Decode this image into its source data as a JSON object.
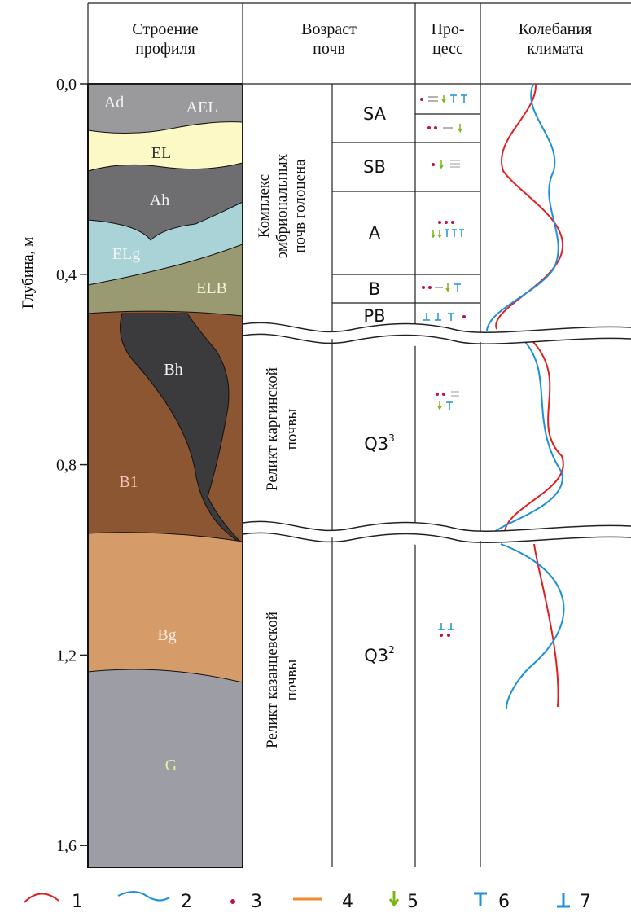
{
  "header": {
    "profile": [
      "Строение",
      "профиля"
    ],
    "age": [
      "Возраст",
      "почв"
    ],
    "process": [
      "Про-",
      "цесс"
    ],
    "climate": [
      "Колебания",
      "климата"
    ]
  },
  "depth_axis": {
    "title": "Глубина, м",
    "ticks": [
      {
        "value": 0,
        "label": "0,0"
      },
      {
        "value": 0.4,
        "label": "0,4"
      },
      {
        "value": 0.8,
        "label": "0,8"
      },
      {
        "value": 1.2,
        "label": "1,2"
      },
      {
        "value": 1.6,
        "label": "1,6"
      }
    ]
  },
  "horizons": [
    "Ad",
    "AEL",
    "EL",
    "Ah",
    "ELg",
    "ELB",
    "Bh",
    "B1",
    "Bg",
    "G"
  ],
  "soil_groups": [
    [
      "Комплекс",
      "эмбриональных",
      "почв голоцена"
    ],
    [
      "Реликт каргинской",
      "почвы"
    ],
    [
      "Реликт казанцевской",
      "почвы"
    ]
  ],
  "ages": [
    "SA",
    "SB",
    "A",
    "B",
    "PB",
    {
      "base": "Q3",
      "sup": "3"
    },
    {
      "base": "Q3",
      "sup": "2"
    }
  ],
  "legend": [
    "1",
    "2",
    "3",
    "4",
    "5",
    "6",
    "7"
  ]
}
